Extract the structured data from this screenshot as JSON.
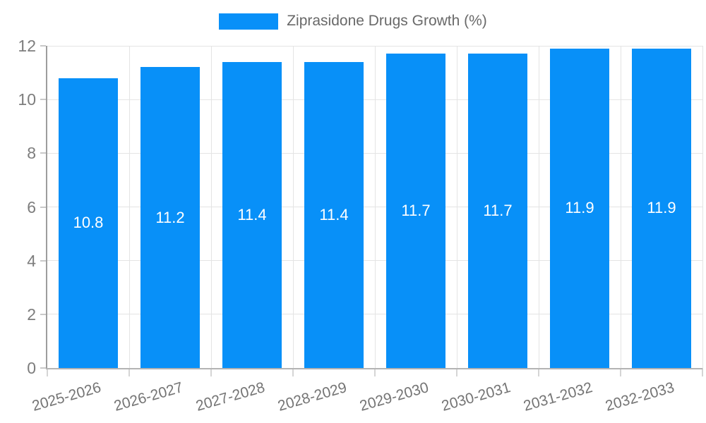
{
  "legend": {
    "label": "Ziprasidone Drugs Growth (%)"
  },
  "chart_data": {
    "type": "bar",
    "title": "Ziprasidone Drugs Growth (%)",
    "series_name": "Ziprasidone Drugs Growth (%)",
    "categories": [
      "2025-2026",
      "2026-2027",
      "2027-2028",
      "2028-2029",
      "2029-2030",
      "2030-2031",
      "2031-2032",
      "2032-2033"
    ],
    "values": [
      10.8,
      11.2,
      11.4,
      11.4,
      11.7,
      11.7,
      11.9,
      11.9
    ],
    "bar_value_labels": [
      "10.8",
      "11.2",
      "11.4",
      "11.4",
      "11.7",
      "11.7",
      "11.9",
      "11.9"
    ],
    "xlabel": "",
    "ylabel": "",
    "ylim": [
      0,
      12
    ],
    "yticks": [
      0,
      2,
      4,
      6,
      8,
      10,
      12
    ],
    "grid": true,
    "legend_position": "top",
    "colors": {
      "bar": "#0890f8",
      "bar_label": "#ffffff",
      "gridline": "#e4e4e4",
      "axis": "#9d9d9d",
      "tick_label": "#7d7d7d",
      "legend_text": "#696969"
    }
  }
}
